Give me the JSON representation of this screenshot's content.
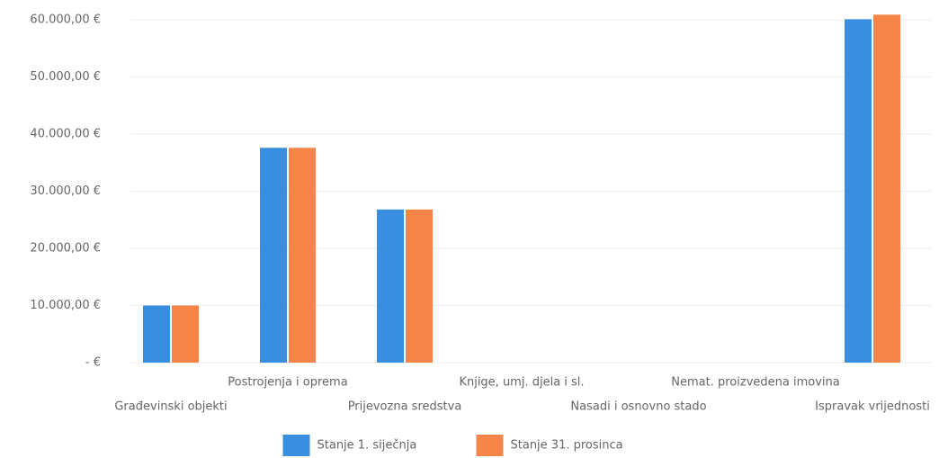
{
  "chart_data": {
    "type": "bar",
    "categories": [
      "Građevinski objekti",
      "Postrojenja i oprema",
      "Prijevozna sredstva",
      "Knjige, umj. djela i sl.",
      "Nasadi i osnovno stado",
      "Nemat. proizvedena imovina",
      "Ispravak vrijednosti"
    ],
    "series": [
      {
        "name": "Stanje 1. siječnja",
        "color": "#3a8ee0",
        "values": [
          10000,
          37600,
          26800,
          0,
          0,
          0,
          60100
        ]
      },
      {
        "name": "Stanje 31. prosinca",
        "color": "#f7854a",
        "values": [
          10000,
          37600,
          26800,
          0,
          0,
          0,
          60900
        ]
      }
    ],
    "ylim": [
      0,
      60000
    ],
    "yticks": [
      {
        "value": 0,
        "label": "-   €"
      },
      {
        "value": 10000,
        "label": "10.000,00 €"
      },
      {
        "value": 20000,
        "label": "20.000,00 €"
      },
      {
        "value": 30000,
        "label": "30.000,00 €"
      },
      {
        "value": 40000,
        "label": "40.000,00 €"
      },
      {
        "value": 50000,
        "label": "50.000,00 €"
      },
      {
        "value": 60000,
        "label": "60.000,00 €"
      }
    ],
    "grid": true,
    "legend": "bottom"
  }
}
